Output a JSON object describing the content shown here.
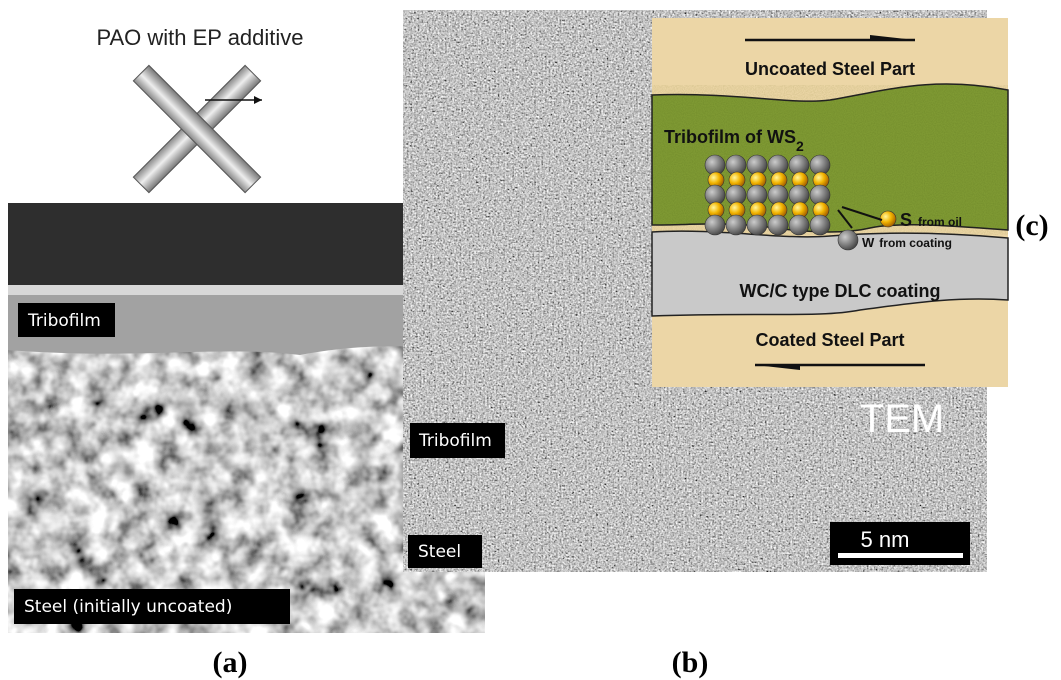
{
  "panel_a": {
    "schematic_label": "PAO with EP additive",
    "tribofilm_label": "Tribofilm",
    "steel_label": "Steel (initially uncoated)",
    "caption": "(a)"
  },
  "panel_b": {
    "tribofilm_label": "Tribofilm",
    "steel_label": "Steel",
    "scale_bar": "5 nm",
    "method": "TEM",
    "caption": "(b)"
  },
  "panel_c": {
    "caption": "(c)",
    "top_part": "Uncoated Steel Part",
    "tribofilm": "Tribofilm of WS",
    "tribofilm_subscript": "2",
    "sulfur": "S",
    "sulfur_source": "from oil",
    "tungsten": "W",
    "tungsten_source": "from coating",
    "coating": "WC/C type DLC coating",
    "bottom_part": "Coated Steel Part"
  }
}
